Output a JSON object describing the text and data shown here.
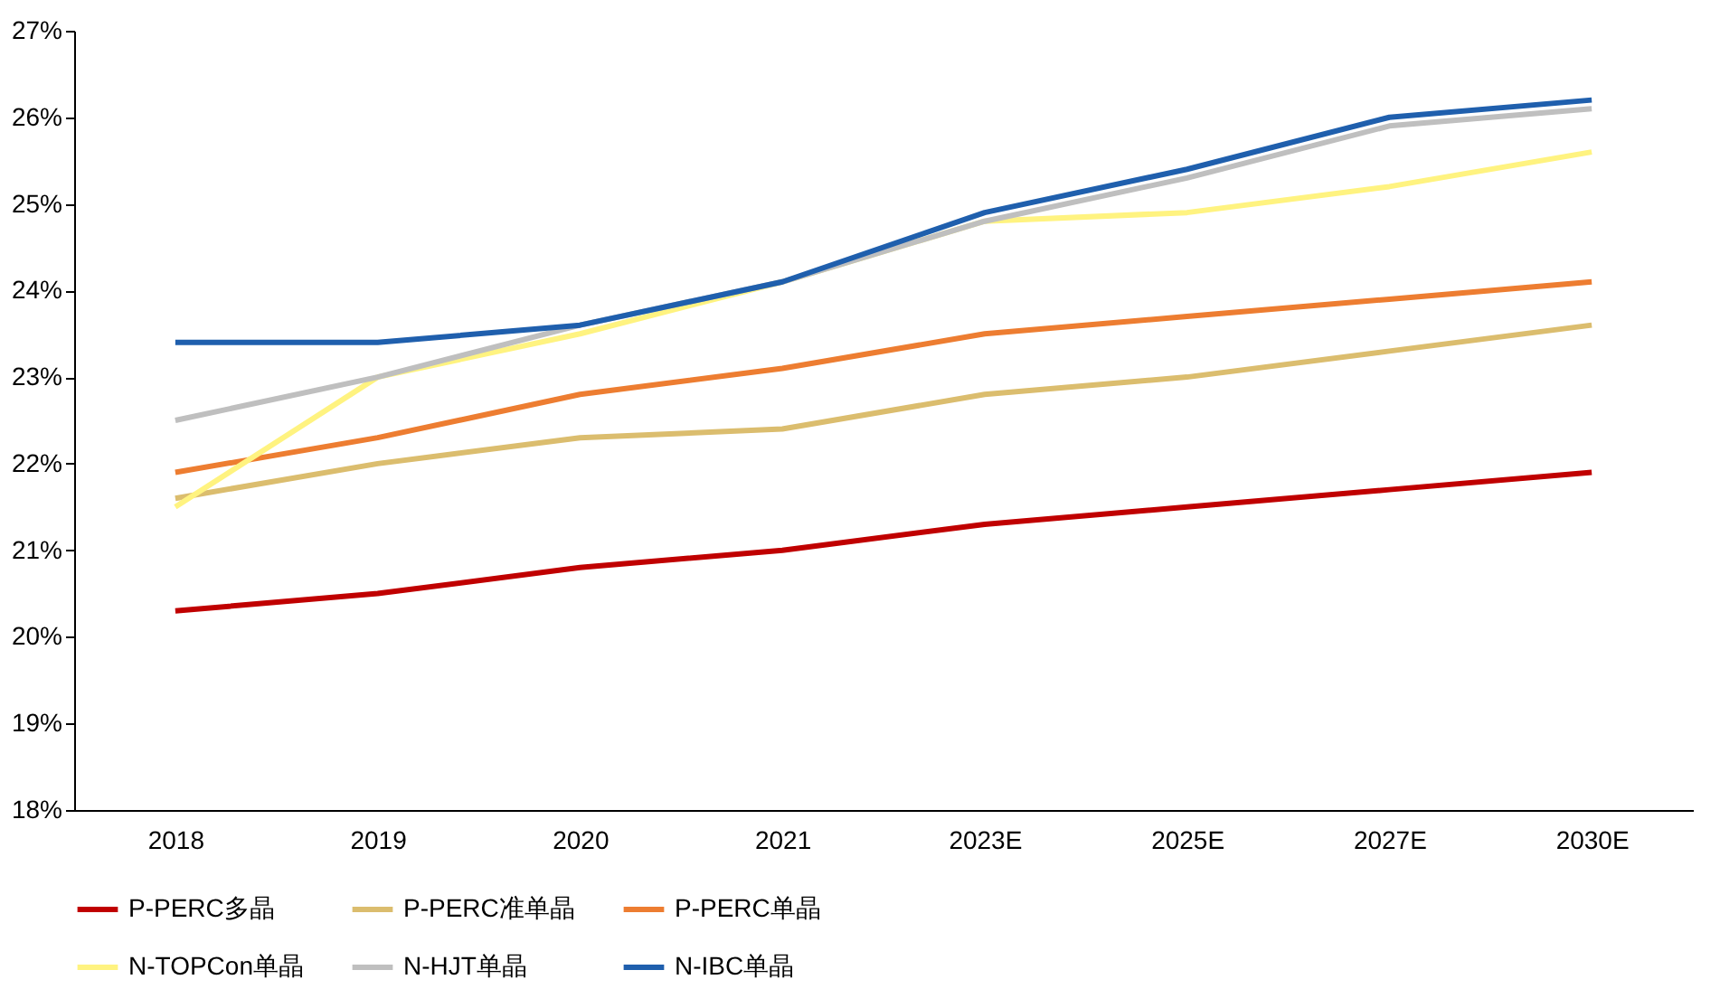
{
  "chart_data": {
    "type": "line",
    "categories": [
      "2018",
      "2019",
      "2020",
      "2021",
      "2023E",
      "2025E",
      "2027E",
      "2030E"
    ],
    "series": [
      {
        "name": "P-PERC多晶",
        "color": "#c00000",
        "values": [
          20.3,
          20.5,
          20.8,
          21.0,
          21.3,
          21.5,
          21.7,
          21.9
        ]
      },
      {
        "name": "P-PERC准单晶",
        "color": "#dbbd6e",
        "values": [
          21.6,
          22.0,
          22.3,
          22.4,
          22.8,
          23.0,
          23.3,
          23.6
        ]
      },
      {
        "name": "P-PERC单晶",
        "color": "#ed7d31",
        "values": [
          21.9,
          22.3,
          22.8,
          23.1,
          23.5,
          23.7,
          23.9,
          24.1
        ]
      },
      {
        "name": "N-TOPCon单晶",
        "color": "#fff380",
        "values": [
          21.5,
          23.0,
          23.5,
          24.1,
          24.8,
          24.9,
          25.2,
          25.6
        ]
      },
      {
        "name": "N-HJT单晶",
        "color": "#bfbfbf",
        "values": [
          22.5,
          23.0,
          23.6,
          24.1,
          24.8,
          25.3,
          25.9,
          26.1
        ]
      },
      {
        "name": "N-IBC单晶",
        "color": "#1f5fad",
        "values": [
          23.4,
          23.4,
          23.6,
          24.1,
          24.9,
          25.4,
          26.0,
          26.2
        ]
      }
    ],
    "ylim": [
      18,
      27
    ],
    "yticks": [
      {
        "value": 18,
        "label": "18%"
      },
      {
        "value": 19,
        "label": "19%"
      },
      {
        "value": 20,
        "label": "20%"
      },
      {
        "value": 21,
        "label": "21%"
      },
      {
        "value": 22,
        "label": "22%"
      },
      {
        "value": 23,
        "label": "23%"
      },
      {
        "value": 24,
        "label": "24%"
      },
      {
        "value": 25,
        "label": "25%"
      },
      {
        "value": 26,
        "label": "26%"
      },
      {
        "value": 27,
        "label": "27%"
      }
    ],
    "legend": "bottom",
    "grid": false,
    "marker": "none",
    "line_style": "solid"
  }
}
